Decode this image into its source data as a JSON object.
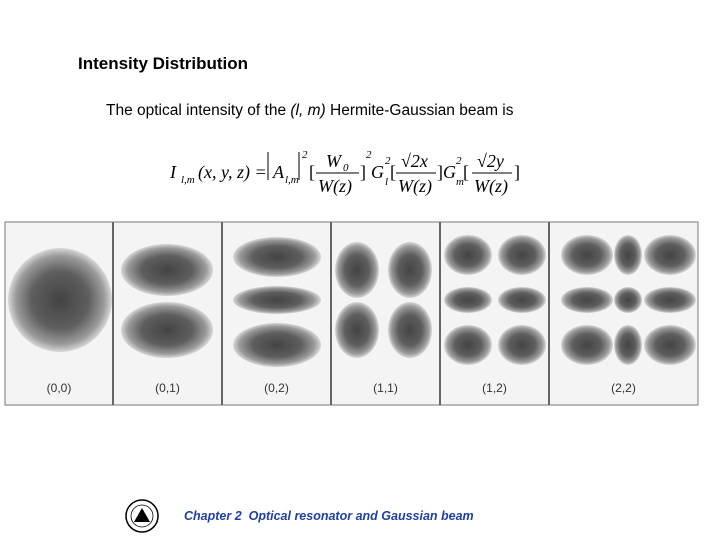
{
  "header": {
    "title": "Intensity Distribution"
  },
  "intro": {
    "before": "The optical intensity of the",
    "mode": "(l, m)",
    "after": "Hermite-Gaussian beam is"
  },
  "formula": {
    "tokens": [
      "I",
      "l,m",
      "(x, y, z) =",
      "A",
      "l,m",
      "2",
      "[",
      "W",
      "0",
      "W(z)",
      "]",
      "2",
      "G",
      "l",
      "2",
      "[",
      "√2x",
      "W(z)",
      "]",
      "G",
      "m",
      "2",
      "[",
      "√2y",
      "W(z)",
      "]"
    ]
  },
  "figure": {
    "labels": [
      "(0,0)",
      "(0,1)",
      "(0,2)",
      "(1,1)",
      "(1,2)",
      "(2,2)"
    ]
  },
  "footer": {
    "text": "Chapter 2  Optical resonator and Gaussian beam"
  }
}
